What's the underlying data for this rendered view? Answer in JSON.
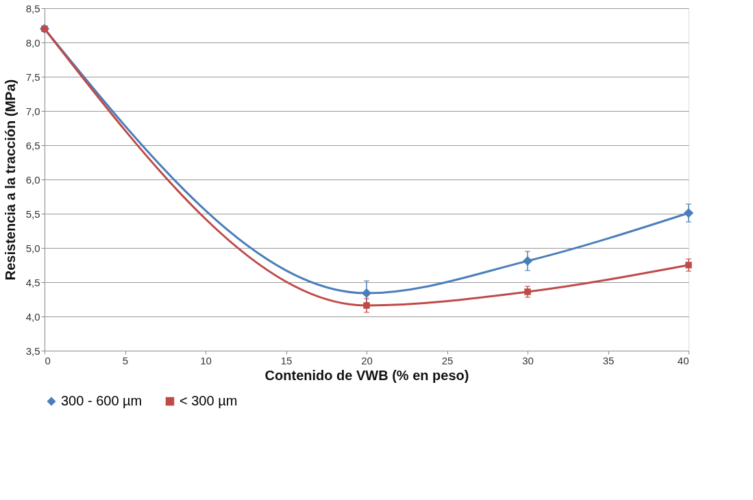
{
  "chart_data": {
    "type": "line",
    "xlabel": "Contenido de VWB (% en peso)",
    "ylabel": "Resistencia a la tracción (MPa)",
    "x": [
      0,
      20,
      30,
      40
    ],
    "series": [
      {
        "name": "300 - 600 µm",
        "color": "#4a7ebb",
        "marker": "diamond",
        "values": [
          8.2,
          4.34,
          4.81,
          5.51
        ],
        "errors": [
          null,
          0.18,
          0.14,
          0.13
        ]
      },
      {
        "name": "< 300 µm",
        "color": "#be4b48",
        "marker": "square",
        "values": [
          8.2,
          4.16,
          4.36,
          4.75
        ],
        "errors": [
          null,
          0.1,
          0.08,
          0.09
        ]
      }
    ],
    "xlim": [
      0,
      40
    ],
    "xticks": [
      0,
      5,
      10,
      15,
      20,
      25,
      30,
      35,
      40
    ],
    "ylim": [
      3.5,
      8.5
    ],
    "yticks": [
      {
        "value": 3.5,
        "label": "3,5"
      },
      {
        "value": 4,
        "label": "4,0"
      },
      {
        "value": 4.5,
        "label": "4,5"
      },
      {
        "value": 5,
        "label": "5,0"
      },
      {
        "value": 5.5,
        "label": "5,5"
      },
      {
        "value": 6,
        "label": "6,0"
      },
      {
        "value": 6.5,
        "label": "6,5"
      },
      {
        "value": 7,
        "label": "7,0"
      },
      {
        "value": 7.5,
        "label": "7,5"
      },
      {
        "value": 8,
        "label": "8,0"
      },
      {
        "value": 8.5,
        "label": "8,5"
      }
    ],
    "grid": "y",
    "legend": "bottom",
    "line_style": "solid"
  }
}
